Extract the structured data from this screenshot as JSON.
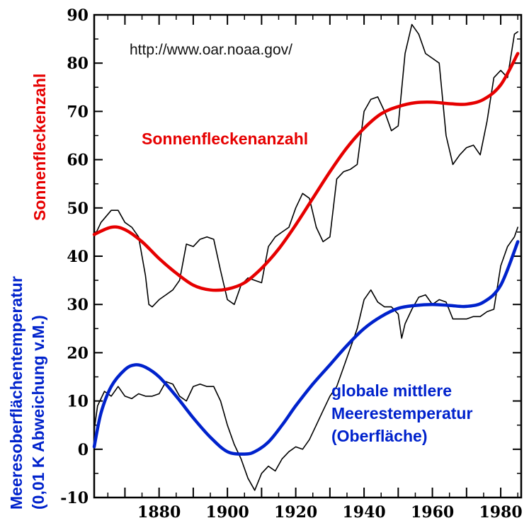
{
  "chart_data": {
    "type": "line",
    "source": "http://www.oar.noaa.gov/",
    "left_axis_label_red": "Sonnenfleckenzahl",
    "left_axis_label_blue_line1": "Meeresoberflächentemperatur",
    "left_axis_label_blue_line2": "(0,01 K Abweichung v.M.)",
    "xlim": [
      1861,
      1986
    ],
    "ylim": [
      -10,
      90
    ],
    "x_ticks": [
      1880,
      1900,
      1920,
      1940,
      1960,
      1980
    ],
    "y_ticks": [
      -10,
      0,
      10,
      20,
      30,
      40,
      50,
      60,
      70,
      80,
      90
    ],
    "grid": false,
    "colors": {
      "sunspot_smooth": "#e60000",
      "sst_smooth": "#0022cc",
      "raw": "#000000"
    },
    "series_labels": {
      "sunspot": "Sonnenfleckenanzahl",
      "sst_line1": "globale mittlere",
      "sst_line2": "Meerestemperatur",
      "sst_line3": "(Oberfläche)"
    },
    "series": [
      {
        "name": "Sonnenfleckenanzahl",
        "style": "smooth",
        "color": "#e60000",
        "x": [
          1861,
          1866,
          1870,
          1875,
          1880,
          1885,
          1890,
          1895,
          1900,
          1905,
          1910,
          1915,
          1920,
          1925,
          1930,
          1935,
          1940,
          1945,
          1950,
          1955,
          1960,
          1965,
          1970,
          1975,
          1980,
          1985
        ],
        "y": [
          44.5,
          46,
          45.5,
          43,
          39.5,
          36.5,
          34,
          33,
          33.2,
          34.5,
          37.5,
          41.5,
          46.5,
          52,
          57.5,
          62.5,
          66.5,
          69.5,
          71,
          71.8,
          71.9,
          71.6,
          71.5,
          72.5,
          75.5,
          82
        ]
      },
      {
        "name": "Sonnenfleckenzahl",
        "style": "raw",
        "color": "#000000",
        "x": [
          1861,
          1863,
          1866,
          1868,
          1870,
          1872,
          1874,
          1876,
          1877,
          1878,
          1880,
          1882,
          1884,
          1886,
          1888,
          1890,
          1892,
          1894,
          1896,
          1898,
          1900,
          1902,
          1904,
          1906,
          1908,
          1910,
          1912,
          1914,
          1916,
          1918,
          1920,
          1922,
          1924,
          1926,
          1928,
          1930,
          1932,
          1934,
          1936,
          1938,
          1940,
          1942,
          1944,
          1946,
          1948,
          1950,
          1952,
          1954,
          1956,
          1958,
          1960,
          1962,
          1964,
          1966,
          1968,
          1970,
          1972,
          1974,
          1976,
          1978,
          1980,
          1982,
          1984,
          1985
        ],
        "y": [
          44,
          47,
          49.5,
          49.5,
          47,
          46,
          44,
          36,
          30,
          29.5,
          31,
          32,
          33,
          35,
          42.5,
          42,
          43.5,
          44,
          43.5,
          37,
          31,
          30,
          34,
          35.5,
          35,
          34.5,
          42,
          44,
          45,
          46,
          50,
          53,
          52,
          46,
          43,
          44,
          56,
          57.5,
          58,
          59,
          70,
          72.5,
          73,
          70,
          66,
          67,
          82,
          88,
          86,
          82,
          81,
          80,
          65,
          59,
          61,
          62.5,
          63,
          61,
          68,
          77,
          78.5,
          77,
          86,
          86.5
        ]
      },
      {
        "name": "globale mittlere Meerestemperatur (Oberfläche)",
        "style": "smooth",
        "color": "#0022cc",
        "x": [
          1861,
          1863,
          1866,
          1870,
          1873,
          1876,
          1880,
          1885,
          1890,
          1895,
          1900,
          1905,
          1908,
          1912,
          1916,
          1920,
          1925,
          1930,
          1935,
          1940,
          1945,
          1950,
          1955,
          1960,
          1965,
          1970,
          1975,
          1980,
          1985
        ],
        "y": [
          0.5,
          7.5,
          13,
          16.5,
          17.5,
          17,
          15,
          11,
          6.5,
          2.5,
          -0.5,
          -1,
          -0.5,
          1.5,
          5,
          9,
          13.5,
          17.5,
          21.5,
          25,
          27.5,
          29.2,
          29.8,
          30,
          29.8,
          29.6,
          30.5,
          34,
          43
        ]
      },
      {
        "name": "Meeresoberflächentemperatur",
        "style": "raw",
        "color": "#000000",
        "x": [
          1861,
          1862,
          1864,
          1866,
          1868,
          1870,
          1872,
          1874,
          1876,
          1878,
          1880,
          1882,
          1884,
          1886,
          1888,
          1890,
          1892,
          1894,
          1896,
          1898,
          1900,
          1902,
          1904,
          1906,
          1908,
          1910,
          1912,
          1914,
          1916,
          1918,
          1920,
          1922,
          1924,
          1926,
          1928,
          1930,
          1932,
          1934,
          1936,
          1938,
          1940,
          1942,
          1944,
          1946,
          1948,
          1950,
          1951,
          1952,
          1954,
          1956,
          1958,
          1960,
          1962,
          1964,
          1966,
          1968,
          1970,
          1972,
          1974,
          1976,
          1978,
          1980,
          1982,
          1984,
          1985
        ],
        "y": [
          4,
          9,
          12,
          11,
          13,
          11,
          10.5,
          11.5,
          11,
          11,
          11.5,
          14,
          13.5,
          11,
          10,
          13,
          13.5,
          13,
          13,
          10,
          5,
          1,
          -2,
          -6,
          -8.5,
          -5,
          -3.5,
          -4.5,
          -2,
          -0.5,
          0.5,
          0,
          2,
          5,
          8,
          11,
          13,
          17,
          21,
          25,
          31,
          33,
          30.5,
          29.5,
          29.5,
          28,
          23,
          26,
          29,
          31.5,
          32,
          30,
          31,
          30.5,
          27,
          27,
          27,
          27.5,
          27.5,
          28.5,
          29,
          38,
          42,
          44,
          46
        ]
      }
    ]
  }
}
